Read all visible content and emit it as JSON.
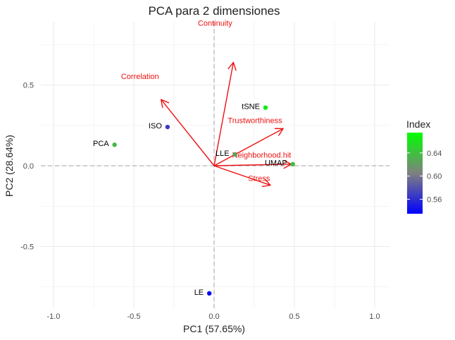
{
  "chart_data": {
    "type": "scatter",
    "subtype": "pca-biplot",
    "title": "PCA para  2 dimensiones",
    "xlabel": "PC1 (57.65%)",
    "ylabel": "PC2 (28.64%)",
    "xlim": [
      -1.1,
      1.1
    ],
    "ylim": [
      -0.88,
      0.88
    ],
    "x_ticks": [
      -1.0,
      -0.5,
      0.0,
      0.5,
      1.0
    ],
    "x_tick_labels": [
      "-1.0",
      "-0.5",
      "0.0",
      "0.5",
      "1.0"
    ],
    "y_ticks": [
      -0.5,
      0.0,
      0.5
    ],
    "y_tick_labels": [
      "-0.5",
      "0.0",
      "0.5"
    ],
    "grid": true,
    "zero_lines": "dashed",
    "points": [
      {
        "label": "tSNE",
        "x": 0.32,
        "y": 0.36,
        "index": 0.665
      },
      {
        "label": "ISO",
        "x": -0.29,
        "y": 0.24,
        "index": 0.567
      },
      {
        "label": "PCA",
        "x": -0.62,
        "y": 0.13,
        "index": 0.635
      },
      {
        "label": "LLE",
        "x": 0.13,
        "y": 0.07,
        "index": 0.625
      },
      {
        "label": "UMAP",
        "x": 0.49,
        "y": 0.01,
        "index": 0.64
      },
      {
        "label": "LE",
        "x": -0.03,
        "y": -0.79,
        "index": 0.535
      }
    ],
    "loadings": [
      {
        "label": "Continuity",
        "x": 0.12,
        "y": 0.64
      },
      {
        "label": "Correlation",
        "x": -0.33,
        "y": 0.41
      },
      {
        "label": "Trustworthiness",
        "x": 0.43,
        "y": 0.23
      },
      {
        "label": "Neighborhood.hit",
        "x": 0.48,
        "y": 0.01
      },
      {
        "label": "Stress",
        "x": 0.35,
        "y": -0.12
      }
    ],
    "legend": {
      "title": "Index",
      "placement": "right",
      "min": 0.535,
      "max": 0.675,
      "ticks": [
        0.56,
        0.6,
        0.64
      ],
      "tick_labels": [
        "0.56",
        "0.60",
        "0.64"
      ],
      "color_low": "#0000ff",
      "color_mid": "#808080",
      "color_high": "#00ff00"
    },
    "colors": {
      "loading": "#ee1111",
      "grid": "#ebebeb",
      "zero_line": "#b3b3b3"
    }
  }
}
